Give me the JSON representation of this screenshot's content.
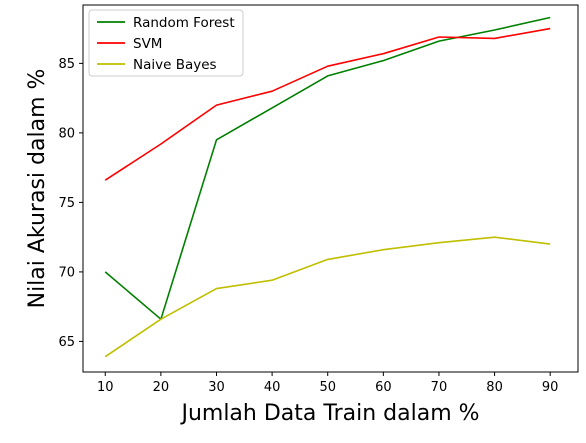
{
  "chart_data": {
    "type": "line",
    "title": "",
    "xlabel": "Jumlah Data Train dalam %",
    "ylabel": "Nilai Akurasi dalam %",
    "x": [
      10,
      20,
      30,
      40,
      50,
      60,
      70,
      80,
      90
    ],
    "xticks": [
      "10",
      "20",
      "30",
      "40",
      "50",
      "60",
      "70",
      "80",
      "90"
    ],
    "yticks": [
      "65",
      "70",
      "75",
      "80",
      "85"
    ],
    "ytick_values": [
      65,
      70,
      75,
      80,
      85
    ],
    "xlim": [
      6,
      95
    ],
    "ylim": [
      62.8,
      89.2
    ],
    "grid": false,
    "legend_position": "upper-left",
    "series": [
      {
        "name": "Random Forest",
        "color": "#008000",
        "values": [
          70.0,
          66.6,
          79.5,
          81.8,
          84.1,
          85.2,
          86.6,
          87.4,
          88.3
        ]
      },
      {
        "name": "SVM",
        "color": "#ff0000",
        "values": [
          76.6,
          79.2,
          82.0,
          83.0,
          84.8,
          85.7,
          86.9,
          86.8,
          87.5
        ]
      },
      {
        "name": "Naive Bayes",
        "color": "#bfbf00",
        "values": [
          63.9,
          66.6,
          68.8,
          69.4,
          70.9,
          71.6,
          72.1,
          72.5,
          72.0
        ]
      }
    ]
  }
}
